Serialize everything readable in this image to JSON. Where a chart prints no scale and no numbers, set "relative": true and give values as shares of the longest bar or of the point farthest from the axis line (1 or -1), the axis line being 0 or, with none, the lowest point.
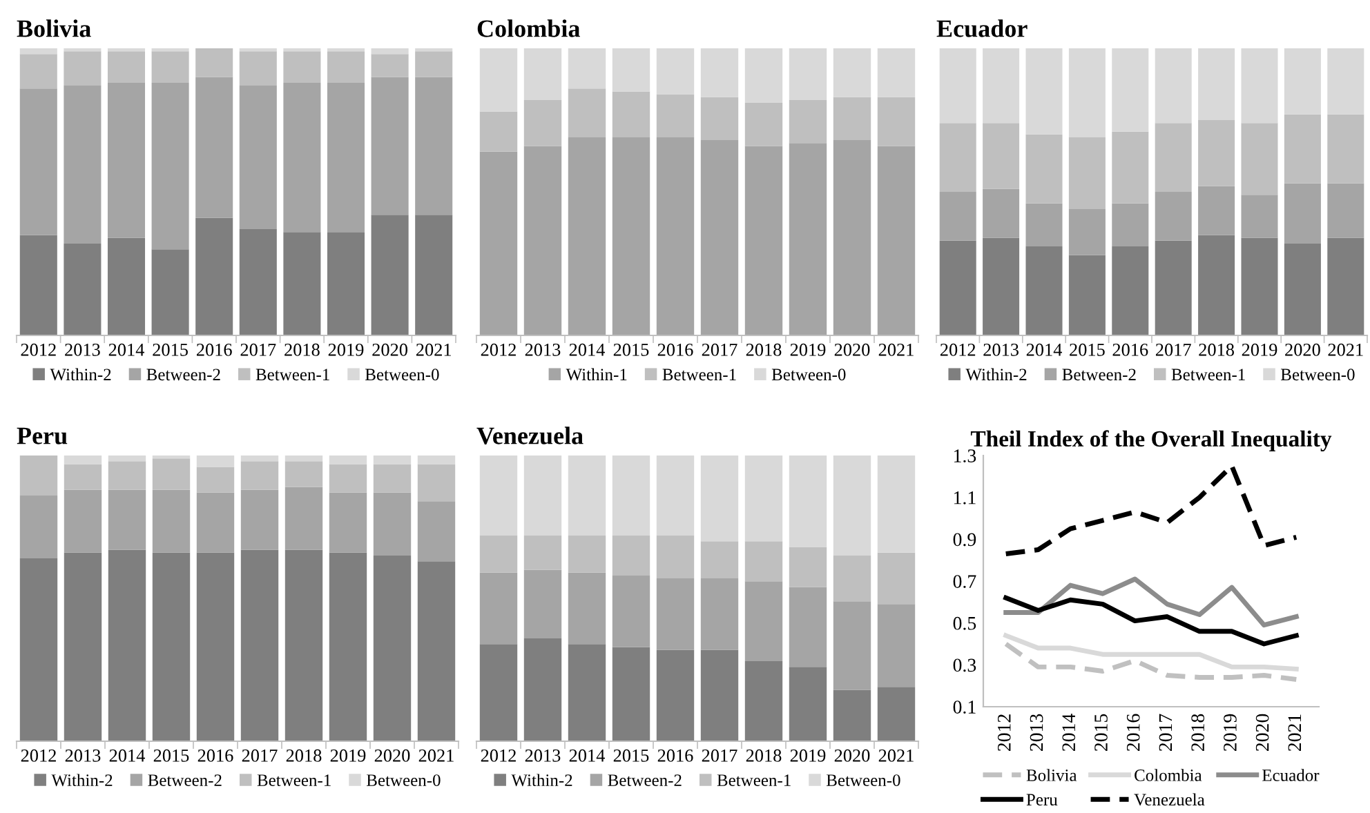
{
  "chart_data": [
    {
      "type": "bar",
      "title": "Bolivia",
      "stacked": true,
      "relative": true,
      "legend": "bottom",
      "categories": [
        "2012",
        "2013",
        "2014",
        "2015",
        "2016",
        "2017",
        "2018",
        "2019",
        "2020",
        "2021"
      ],
      "series": [
        {
          "name": "Within-2",
          "color": "#7f7f7f",
          "values": [
            0.35,
            0.32,
            0.34,
            0.3,
            0.41,
            0.37,
            0.36,
            0.36,
            0.42,
            0.42
          ]
        },
        {
          "name": "Between-2",
          "color": "#a5a5a5",
          "values": [
            0.51,
            0.55,
            0.54,
            0.58,
            0.49,
            0.5,
            0.52,
            0.52,
            0.48,
            0.48
          ]
        },
        {
          "name": "Between-1",
          "color": "#bfbfbf",
          "values": [
            0.12,
            0.12,
            0.11,
            0.11,
            0.1,
            0.12,
            0.11,
            0.11,
            0.08,
            0.09
          ]
        },
        {
          "name": "Between-0",
          "color": "#d9d9d9",
          "values": [
            0.02,
            0.01,
            0.01,
            0.01,
            0.0,
            0.01,
            0.01,
            0.01,
            0.02,
            0.01
          ]
        }
      ]
    },
    {
      "type": "bar",
      "title": "Colombia",
      "stacked": true,
      "relative": true,
      "legend": "bottom",
      "categories": [
        "2012",
        "2013",
        "2014",
        "2015",
        "2016",
        "2017",
        "2018",
        "2019",
        "2020",
        "2021"
      ],
      "series": [
        {
          "name": "Within-1",
          "color": "#a5a5a5",
          "values": [
            0.64,
            0.66,
            0.69,
            0.69,
            0.69,
            0.68,
            0.66,
            0.67,
            0.68,
            0.66
          ]
        },
        {
          "name": "Between-1",
          "color": "#bfbfbf",
          "values": [
            0.14,
            0.16,
            0.17,
            0.16,
            0.15,
            0.15,
            0.15,
            0.15,
            0.15,
            0.17
          ]
        },
        {
          "name": "Between-0",
          "color": "#d9d9d9",
          "values": [
            0.22,
            0.18,
            0.14,
            0.15,
            0.16,
            0.17,
            0.19,
            0.18,
            0.17,
            0.17
          ]
        }
      ]
    },
    {
      "type": "bar",
      "title": "Ecuador",
      "stacked": true,
      "relative": true,
      "legend": "bottom",
      "categories": [
        "2012",
        "2013",
        "2014",
        "2015",
        "2016",
        "2017",
        "2018",
        "2019",
        "2020",
        "2021"
      ],
      "series": [
        {
          "name": "Within-2",
          "color": "#7f7f7f",
          "values": [
            0.33,
            0.34,
            0.31,
            0.28,
            0.31,
            0.33,
            0.35,
            0.34,
            0.32,
            0.34
          ]
        },
        {
          "name": "Between-2",
          "color": "#a5a5a5",
          "values": [
            0.17,
            0.17,
            0.15,
            0.16,
            0.15,
            0.17,
            0.17,
            0.15,
            0.21,
            0.19
          ]
        },
        {
          "name": "Between-1",
          "color": "#bfbfbf",
          "values": [
            0.24,
            0.23,
            0.24,
            0.25,
            0.25,
            0.24,
            0.23,
            0.25,
            0.24,
            0.24
          ]
        },
        {
          "name": "Between-0",
          "color": "#d9d9d9",
          "values": [
            0.26,
            0.26,
            0.3,
            0.31,
            0.29,
            0.26,
            0.25,
            0.26,
            0.23,
            0.23
          ]
        }
      ]
    },
    {
      "type": "bar",
      "title": "Peru",
      "stacked": true,
      "relative": true,
      "legend": "bottom",
      "categories": [
        "2012",
        "2013",
        "2014",
        "2015",
        "2016",
        "2017",
        "2018",
        "2019",
        "2020",
        "2021"
      ],
      "series": [
        {
          "name": "Within-2",
          "color": "#7f7f7f",
          "values": [
            0.64,
            0.66,
            0.67,
            0.66,
            0.66,
            0.67,
            0.67,
            0.66,
            0.65,
            0.63
          ]
        },
        {
          "name": "Between-2",
          "color": "#a5a5a5",
          "values": [
            0.22,
            0.22,
            0.21,
            0.22,
            0.21,
            0.21,
            0.22,
            0.21,
            0.22,
            0.21
          ]
        },
        {
          "name": "Between-1",
          "color": "#bfbfbf",
          "values": [
            0.14,
            0.09,
            0.1,
            0.11,
            0.09,
            0.1,
            0.09,
            0.1,
            0.1,
            0.13
          ]
        },
        {
          "name": "Between-0",
          "color": "#d9d9d9",
          "values": [
            0.0,
            0.03,
            0.02,
            0.01,
            0.04,
            0.02,
            0.02,
            0.03,
            0.03,
            0.03
          ]
        }
      ]
    },
    {
      "type": "bar",
      "title": "Venezuela",
      "stacked": true,
      "relative": true,
      "legend": "bottom",
      "categories": [
        "2012",
        "2013",
        "2014",
        "2015",
        "2016",
        "2017",
        "2018",
        "2019",
        "2020",
        "2021"
      ],
      "series": [
        {
          "name": "Within-2",
          "color": "#7f7f7f",
          "values": [
            0.34,
            0.36,
            0.34,
            0.33,
            0.32,
            0.32,
            0.28,
            0.26,
            0.18,
            0.19
          ]
        },
        {
          "name": "Between-2",
          "color": "#a5a5a5",
          "values": [
            0.25,
            0.24,
            0.25,
            0.25,
            0.25,
            0.25,
            0.28,
            0.28,
            0.31,
            0.29
          ]
        },
        {
          "name": "Between-1",
          "color": "#bfbfbf",
          "values": [
            0.13,
            0.12,
            0.13,
            0.14,
            0.15,
            0.13,
            0.14,
            0.14,
            0.16,
            0.18
          ]
        },
        {
          "name": "Between-0",
          "color": "#d9d9d9",
          "values": [
            0.28,
            0.28,
            0.28,
            0.28,
            0.28,
            0.3,
            0.3,
            0.32,
            0.35,
            0.34
          ]
        }
      ]
    },
    {
      "type": "line",
      "title": "Theil Index of the Overall Inequality",
      "legend": "bottom",
      "ylim": [
        0.1,
        1.3
      ],
      "yticks": [
        0.1,
        0.3,
        0.5,
        0.7,
        0.9,
        1.1,
        1.3
      ],
      "categories": [
        "2012",
        "2013",
        "2014",
        "2015",
        "2016",
        "2017",
        "2018",
        "2019",
        "2020",
        "2021"
      ],
      "series": [
        {
          "name": "Bolivia",
          "color": "#c0c0c0",
          "line_style": "dashed",
          "values": [
            0.4,
            0.29,
            0.29,
            0.27,
            0.32,
            0.25,
            0.24,
            0.24,
            0.25,
            0.23
          ]
        },
        {
          "name": "Colombia",
          "color": "#d9d9d9",
          "line_style": "solid",
          "values": [
            0.44,
            0.38,
            0.38,
            0.35,
            0.35,
            0.35,
            0.35,
            0.29,
            0.29,
            0.28
          ]
        },
        {
          "name": "Ecuador",
          "color": "#8c8c8c",
          "line_style": "solid",
          "values": [
            0.55,
            0.55,
            0.68,
            0.64,
            0.71,
            0.59,
            0.54,
            0.67,
            0.49,
            0.53
          ]
        },
        {
          "name": "Peru",
          "color": "#000000",
          "line_style": "solid",
          "values": [
            0.62,
            0.56,
            0.61,
            0.59,
            0.51,
            0.53,
            0.46,
            0.46,
            0.4,
            0.44
          ]
        },
        {
          "name": "Venezuela",
          "color": "#000000",
          "line_style": "dashed",
          "values": [
            0.83,
            0.85,
            0.95,
            0.99,
            1.03,
            0.98,
            1.1,
            1.25,
            0.87,
            0.91
          ]
        }
      ]
    }
  ]
}
